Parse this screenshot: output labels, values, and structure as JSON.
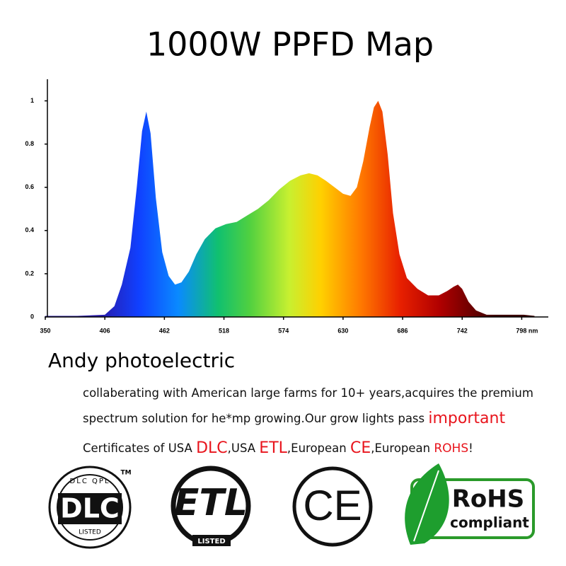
{
  "chart_data": {
    "type": "area",
    "title": "1000W PPFD Map",
    "x": [
      350,
      380,
      406,
      415,
      422,
      430,
      436,
      441,
      445,
      449,
      454,
      460,
      466,
      472,
      478,
      485,
      492,
      500,
      510,
      520,
      530,
      540,
      550,
      560,
      570,
      580,
      590,
      598,
      606,
      614,
      622,
      630,
      637,
      643,
      649,
      655,
      659,
      663,
      667,
      672,
      677,
      683,
      690,
      700,
      710,
      720,
      728,
      734,
      738,
      742,
      748,
      755,
      765,
      780,
      800,
      810
    ],
    "values": [
      0.005,
      0.005,
      0.01,
      0.05,
      0.15,
      0.32,
      0.6,
      0.86,
      0.95,
      0.85,
      0.55,
      0.3,
      0.19,
      0.15,
      0.16,
      0.21,
      0.29,
      0.36,
      0.41,
      0.43,
      0.44,
      0.47,
      0.5,
      0.54,
      0.59,
      0.63,
      0.655,
      0.665,
      0.655,
      0.63,
      0.6,
      0.57,
      0.56,
      0.6,
      0.72,
      0.88,
      0.97,
      1.0,
      0.95,
      0.75,
      0.48,
      0.29,
      0.18,
      0.13,
      0.1,
      0.1,
      0.12,
      0.14,
      0.15,
      0.13,
      0.07,
      0.03,
      0.01,
      0.01,
      0.01,
      0.005
    ],
    "xlim": [
      350,
      823
    ],
    "ylim": [
      0,
      1.1
    ],
    "xticks": [
      350,
      406,
      462,
      518,
      574,
      630,
      686,
      742,
      {
        "value": 798,
        "label": "798 nm"
      }
    ],
    "yticks": [
      0,
      0.2,
      0.4,
      0.6,
      0.8,
      1
    ]
  },
  "company": "Andy photoelectric",
  "description": [
    [
      {
        "text": "collaberating with American large farms for 10+ years,acquires the premium",
        "emphasis": false
      }
    ],
    [
      {
        "text": "spectrum solution for he*mp growing.Our grow lights pass ",
        "emphasis": false
      },
      {
        "text": "important",
        "emphasis": true
      }
    ],
    [
      {
        "text": "Certificates of USA ",
        "emphasis": false
      },
      {
        "text": "DLC",
        "emphasis": true
      },
      {
        "text": ",USA ",
        "emphasis": false
      },
      {
        "text": "ETL",
        "emphasis": true
      },
      {
        "text": ",European ",
        "emphasis": false
      },
      {
        "text": "CE",
        "emphasis": true
      },
      {
        "text": ",European ",
        "emphasis": false
      },
      {
        "text": "ROHS",
        "emphasis": true,
        "small": true
      },
      {
        "text": "!",
        "emphasis": false
      }
    ]
  ],
  "logos": {
    "dlc": {
      "ring": "DLC QPL",
      "mark": "DLC",
      "bottom": "LISTED",
      "tm": "TM"
    },
    "etl": {
      "mark": "ETL",
      "bottom": "LISTED"
    },
    "ce": {
      "mark": "CE"
    },
    "rohs": {
      "mark": "RoHS",
      "sub": "compliant"
    }
  }
}
